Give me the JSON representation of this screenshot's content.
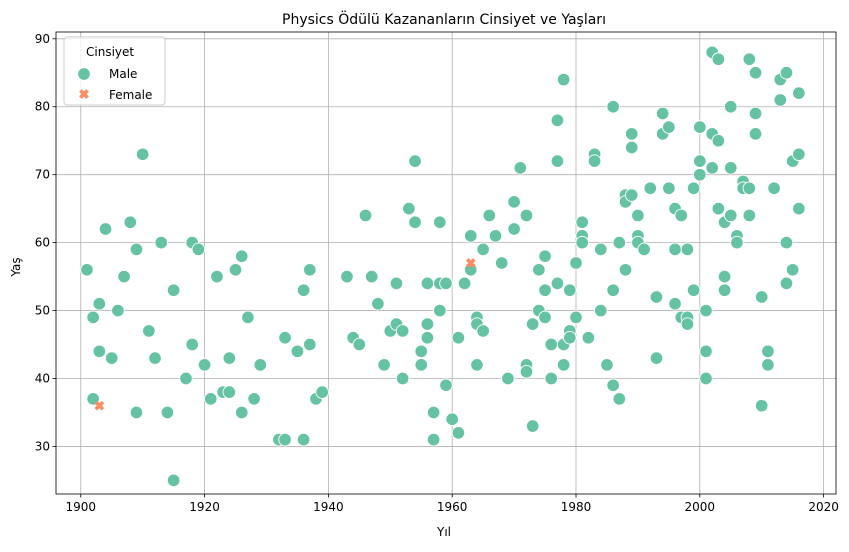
{
  "chart_data": {
    "type": "scatter",
    "title": "Physics Ödülü Kazananların Cinsiyet ve Yaşları",
    "xlabel": "Yıl",
    "ylabel": "Yaş",
    "xlim": [
      1896,
      2022
    ],
    "ylim": [
      23,
      91
    ],
    "xticks": [
      1900,
      1920,
      1940,
      1960,
      1980,
      2000,
      2020
    ],
    "yticks": [
      30,
      40,
      50,
      60,
      70,
      80,
      90
    ],
    "grid": true,
    "legend": {
      "title": "Cinsiyet",
      "placement": "top-left"
    },
    "series": [
      {
        "name": "Male",
        "marker": "circle",
        "color": "#66c2a5",
        "points": [
          [
            1901,
            56
          ],
          [
            1902,
            49
          ],
          [
            1902,
            37
          ],
          [
            1903,
            51
          ],
          [
            1903,
            44
          ],
          [
            1904,
            62
          ],
          [
            1905,
            43
          ],
          [
            1906,
            50
          ],
          [
            1907,
            55
          ],
          [
            1908,
            63
          ],
          [
            1909,
            59
          ],
          [
            1909,
            35
          ],
          [
            1910,
            73
          ],
          [
            1911,
            47
          ],
          [
            1912,
            43
          ],
          [
            1913,
            60
          ],
          [
            1914,
            35
          ],
          [
            1915,
            53
          ],
          [
            1915,
            25
          ],
          [
            1917,
            40
          ],
          [
            1918,
            60
          ],
          [
            1918,
            45
          ],
          [
            1919,
            59
          ],
          [
            1920,
            42
          ],
          [
            1921,
            37
          ],
          [
            1922,
            55
          ],
          [
            1923,
            38
          ],
          [
            1924,
            38
          ],
          [
            1924,
            43
          ],
          [
            1925,
            56
          ],
          [
            1926,
            58
          ],
          [
            1926,
            35
          ],
          [
            1927,
            49
          ],
          [
            1928,
            37
          ],
          [
            1929,
            42
          ],
          [
            1932,
            31
          ],
          [
            1933,
            31
          ],
          [
            1933,
            46
          ],
          [
            1935,
            44
          ],
          [
            1936,
            53
          ],
          [
            1936,
            31
          ],
          [
            1937,
            56
          ],
          [
            1937,
            45
          ],
          [
            1938,
            37
          ],
          [
            1939,
            38
          ],
          [
            1943,
            55
          ],
          [
            1944,
            46
          ],
          [
            1945,
            45
          ],
          [
            1946,
            64
          ],
          [
            1947,
            55
          ],
          [
            1948,
            51
          ],
          [
            1949,
            42
          ],
          [
            1950,
            47
          ],
          [
            1951,
            54
          ],
          [
            1951,
            48
          ],
          [
            1952,
            40
          ],
          [
            1952,
            47
          ],
          [
            1953,
            65
          ],
          [
            1954,
            72
          ],
          [
            1954,
            63
          ],
          [
            1955,
            42
          ],
          [
            1955,
            44
          ],
          [
            1956,
            54
          ],
          [
            1956,
            48
          ],
          [
            1956,
            46
          ],
          [
            1957,
            35
          ],
          [
            1957,
            31
          ],
          [
            1958,
            63
          ],
          [
            1958,
            54
          ],
          [
            1958,
            50
          ],
          [
            1959,
            54
          ],
          [
            1959,
            39
          ],
          [
            1960,
            34
          ],
          [
            1961,
            32
          ],
          [
            1961,
            46
          ],
          [
            1962,
            54
          ],
          [
            1963,
            56
          ],
          [
            1963,
            61
          ],
          [
            1964,
            49
          ],
          [
            1964,
            48
          ],
          [
            1964,
            42
          ],
          [
            1965,
            47
          ],
          [
            1965,
            59
          ],
          [
            1966,
            64
          ],
          [
            1967,
            61
          ],
          [
            1968,
            57
          ],
          [
            1969,
            40
          ],
          [
            1970,
            66
          ],
          [
            1970,
            62
          ],
          [
            1971,
            71
          ],
          [
            1972,
            64
          ],
          [
            1972,
            42
          ],
          [
            1972,
            41
          ],
          [
            1973,
            48
          ],
          [
            1973,
            33
          ],
          [
            1974,
            56
          ],
          [
            1974,
            50
          ],
          [
            1975,
            58
          ],
          [
            1975,
            53
          ],
          [
            1975,
            49
          ],
          [
            1976,
            45
          ],
          [
            1976,
            40
          ],
          [
            1977,
            78
          ],
          [
            1977,
            72
          ],
          [
            1977,
            54
          ],
          [
            1978,
            84
          ],
          [
            1978,
            45
          ],
          [
            1978,
            42
          ],
          [
            1979,
            53
          ],
          [
            1979,
            47
          ],
          [
            1979,
            46
          ],
          [
            1980,
            57
          ],
          [
            1980,
            49
          ],
          [
            1981,
            63
          ],
          [
            1981,
            61
          ],
          [
            1981,
            60
          ],
          [
            1982,
            46
          ],
          [
            1983,
            73
          ],
          [
            1983,
            72
          ],
          [
            1984,
            59
          ],
          [
            1984,
            50
          ],
          [
            1985,
            42
          ],
          [
            1986,
            80
          ],
          [
            1986,
            53
          ],
          [
            1986,
            39
          ],
          [
            1987,
            60
          ],
          [
            1987,
            37
          ],
          [
            1988,
            67
          ],
          [
            1988,
            66
          ],
          [
            1988,
            56
          ],
          [
            1989,
            76
          ],
          [
            1989,
            74
          ],
          [
            1989,
            67
          ],
          [
            1990,
            64
          ],
          [
            1990,
            61
          ],
          [
            1990,
            60
          ],
          [
            1991,
            59
          ],
          [
            1992,
            68
          ],
          [
            1993,
            52
          ],
          [
            1993,
            43
          ],
          [
            1994,
            79
          ],
          [
            1994,
            76
          ],
          [
            1995,
            77
          ],
          [
            1995,
            68
          ],
          [
            1996,
            65
          ],
          [
            1996,
            59
          ],
          [
            1996,
            51
          ],
          [
            1997,
            64
          ],
          [
            1997,
            49
          ],
          [
            1998,
            59
          ],
          [
            1998,
            49
          ],
          [
            1998,
            48
          ],
          [
            1999,
            68
          ],
          [
            1999,
            53
          ],
          [
            2000,
            77
          ],
          [
            2000,
            72
          ],
          [
            2000,
            70
          ],
          [
            2001,
            44
          ],
          [
            2001,
            50
          ],
          [
            2001,
            40
          ],
          [
            2002,
            88
          ],
          [
            2002,
            76
          ],
          [
            2002,
            71
          ],
          [
            2003,
            87
          ],
          [
            2003,
            75
          ],
          [
            2003,
            65
          ],
          [
            2004,
            63
          ],
          [
            2004,
            55
          ],
          [
            2004,
            53
          ],
          [
            2005,
            80
          ],
          [
            2005,
            71
          ],
          [
            2005,
            64
          ],
          [
            2006,
            61
          ],
          [
            2006,
            60
          ],
          [
            2007,
            69
          ],
          [
            2007,
            68
          ],
          [
            2008,
            87
          ],
          [
            2008,
            68
          ],
          [
            2008,
            64
          ],
          [
            2009,
            85
          ],
          [
            2009,
            79
          ],
          [
            2009,
            76
          ],
          [
            2010,
            52
          ],
          [
            2010,
            36
          ],
          [
            2011,
            44
          ],
          [
            2011,
            42
          ],
          [
            2012,
            68
          ],
          [
            2013,
            84
          ],
          [
            2013,
            81
          ],
          [
            2014,
            85
          ],
          [
            2014,
            60
          ],
          [
            2014,
            54
          ],
          [
            2015,
            72
          ],
          [
            2015,
            56
          ],
          [
            2016,
            82
          ],
          [
            2016,
            73
          ],
          [
            2016,
            65
          ]
        ]
      },
      {
        "name": "Female",
        "marker": "x",
        "color": "#fc8d62",
        "points": [
          [
            1903,
            36
          ],
          [
            1963,
            57
          ]
        ]
      }
    ]
  }
}
